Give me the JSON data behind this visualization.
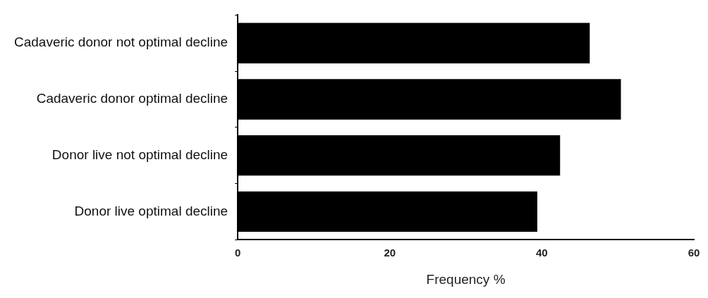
{
  "chart_data": {
    "type": "bar",
    "orientation": "horizontal",
    "xlabel": "Frequency %",
    "categories": [
      "Cadaveric donor not optimal decline",
      "Cadaveric donor optimal decline",
      "Donor live not optimal decline",
      "Donor live optimal decline"
    ],
    "values": [
      46.3,
      50.4,
      42.4,
      39.4
    ],
    "color": "#000000",
    "xlim": [
      0,
      60
    ],
    "xticks": [
      0,
      20,
      40,
      60
    ],
    "grid": false,
    "legend": false
  }
}
